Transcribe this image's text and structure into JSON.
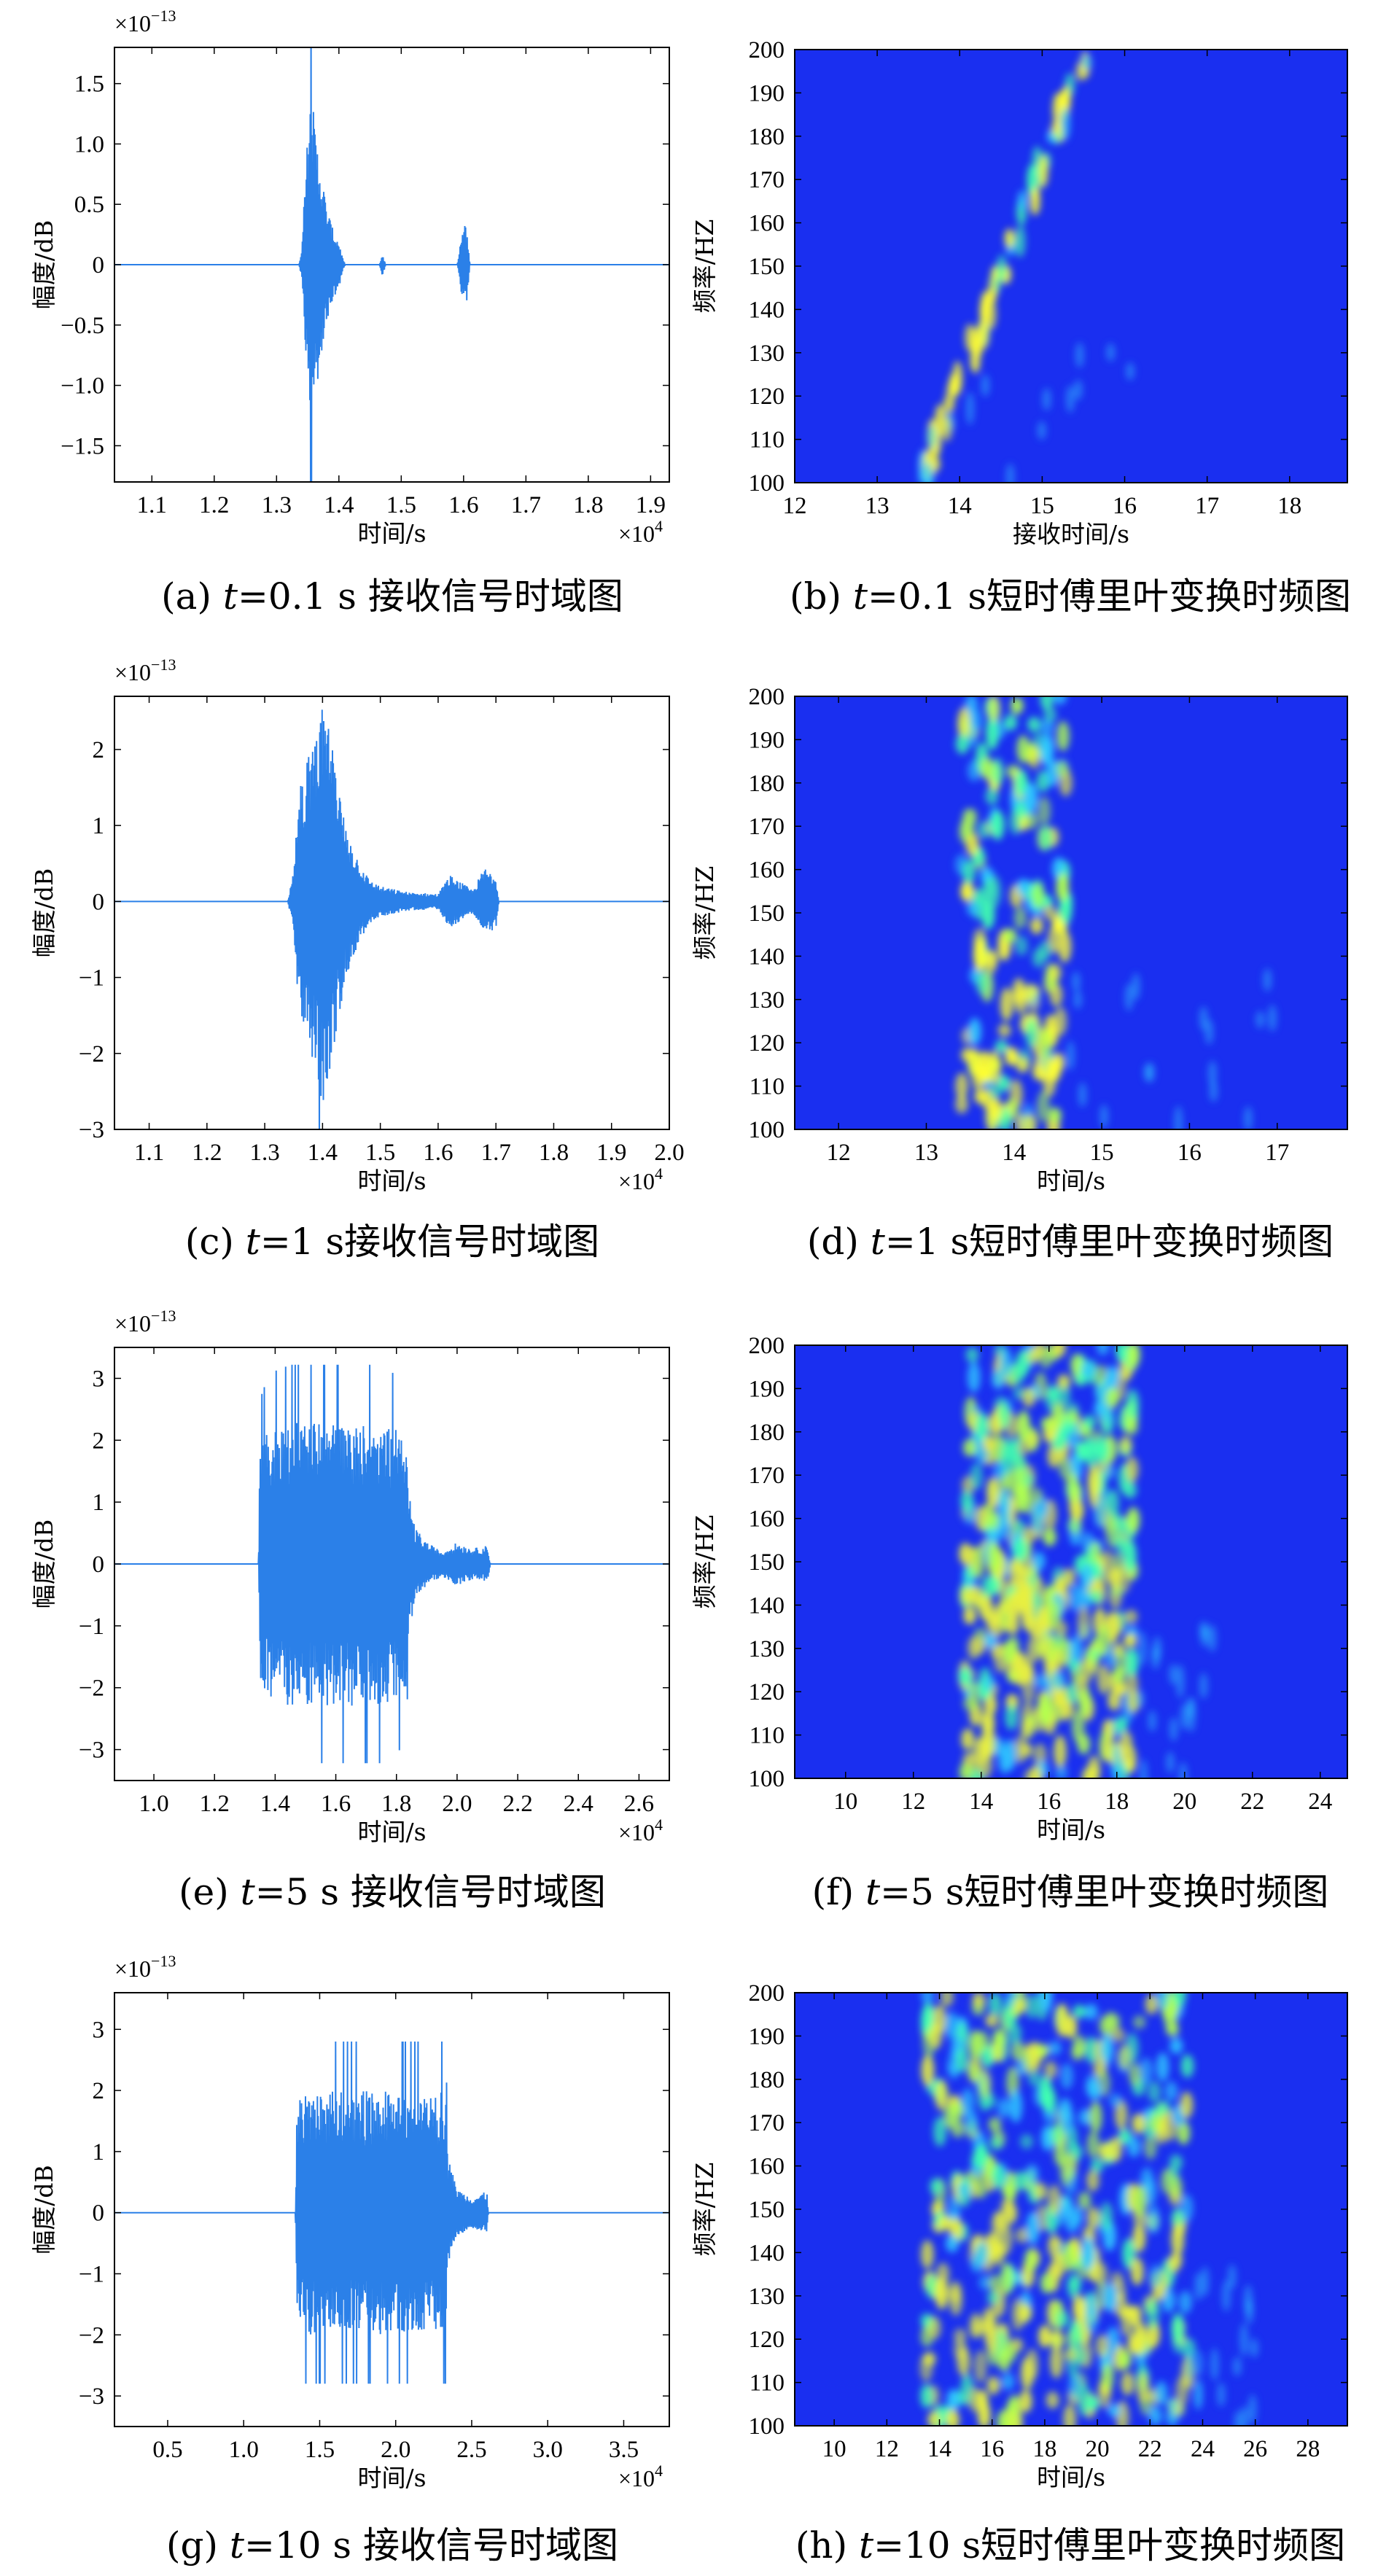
{
  "chart_data": [
    {
      "id": "a",
      "type": "line",
      "caption_prefix": "(a) ",
      "caption_var": "t",
      "caption_suffix": "=0.1 s 接收信号时域图",
      "xlabel": "时间/s",
      "ylabel": "幅度/dB",
      "x_multiplier_base": "×10",
      "x_multiplier_exp": "4",
      "y_multiplier_base": "×10",
      "y_multiplier_exp": "−13",
      "xlim": [
        1.04,
        1.93
      ],
      "ylim": [
        -1.8,
        1.8
      ],
      "xticks": [
        1.1,
        1.2,
        1.3,
        1.4,
        1.5,
        1.6,
        1.7,
        1.8,
        1.9
      ],
      "xtick_labels": [
        "1.1",
        "1.2",
        "1.3",
        "1.4",
        "1.5",
        "1.6",
        "1.7",
        "1.8",
        "1.9"
      ],
      "yticks": [
        -1.5,
        -1.0,
        -0.5,
        0,
        0.5,
        1.0,
        1.5
      ],
      "ytick_labels": [
        "−1.5",
        "−1.0",
        "−0.5",
        "0",
        "0.5",
        "1.0",
        "1.5"
      ],
      "line_color": "#2b80e8",
      "series": [
        {
          "envelope_x": [
            1.04,
            1.336,
            1.34,
            1.345,
            1.35,
            1.355,
            1.36,
            1.37,
            1.38,
            1.39,
            1.4,
            1.405,
            1.41,
            1.465,
            1.47,
            1.475,
            1.59,
            1.595,
            1.6,
            1.605,
            1.61,
            1.93
          ],
          "envelope_y": [
            0,
            0,
            0.1,
            0.6,
            1.1,
            1.65,
            1.2,
            0.85,
            0.5,
            0.3,
            0.2,
            0.08,
            0,
            0,
            0.1,
            0,
            0,
            0.22,
            0.35,
            0.32,
            0,
            0
          ]
        }
      ]
    },
    {
      "id": "b",
      "type": "heatmap",
      "caption_prefix": "(b) ",
      "caption_var": "t",
      "caption_suffix": "=0.1 s短时傅里叶变换时频图",
      "xlabel": "接收时间/s",
      "ylabel": "频率/HZ",
      "xlim": [
        12,
        18.7
      ],
      "ylim": [
        100,
        200
      ],
      "xticks": [
        12,
        13,
        14,
        15,
        16,
        17,
        18
      ],
      "xtick_labels": [
        "12",
        "13",
        "14",
        "15",
        "16",
        "17",
        "18"
      ],
      "yticks": [
        100,
        110,
        120,
        130,
        140,
        150,
        160,
        170,
        180,
        190,
        200
      ],
      "ytick_labels": [
        "100",
        "110",
        "120",
        "130",
        "140",
        "150",
        "160",
        "170",
        "180",
        "190",
        "200"
      ],
      "background_color": "#1a2ff0",
      "hot_colors": [
        "#ffff30",
        "#40ffb0",
        "#30c8ff"
      ],
      "energy_region": {
        "x_start": 13.45,
        "x_end": 13.75,
        "x_drift": 0.02,
        "decay_to_x": 16.1,
        "density": "sparse"
      }
    },
    {
      "id": "c",
      "type": "line",
      "caption_prefix": "(c) ",
      "caption_var": "t",
      "caption_suffix": "=1 s接收信号时域图",
      "xlabel": "时间/s",
      "ylabel": "幅度/dB",
      "x_multiplier_base": "×10",
      "x_multiplier_exp": "4",
      "y_multiplier_base": "×10",
      "y_multiplier_exp": "−13",
      "xlim": [
        1.04,
        2.0
      ],
      "ylim": [
        -3,
        2.7
      ],
      "xticks": [
        1.1,
        1.2,
        1.3,
        1.4,
        1.5,
        1.6,
        1.7,
        1.8,
        1.9,
        2.0
      ],
      "xtick_labels": [
        "1.1",
        "1.2",
        "1.3",
        "1.4",
        "1.5",
        "1.6",
        "1.7",
        "1.8",
        "1.9",
        "2.0"
      ],
      "yticks": [
        -3,
        -2,
        -1,
        0,
        1,
        2
      ],
      "ytick_labels": [
        "−3",
        "−2",
        "−1",
        "0",
        "1",
        "2"
      ],
      "line_color": "#2b80e8",
      "series": [
        {
          "envelope_x": [
            1.04,
            1.34,
            1.35,
            1.36,
            1.38,
            1.4,
            1.42,
            1.44,
            1.46,
            1.48,
            1.5,
            1.55,
            1.6,
            1.62,
            1.64,
            1.66,
            1.68,
            1.7,
            1.705,
            2.0
          ],
          "envelope_y": [
            0,
            0,
            0.4,
            1.6,
            2.0,
            2.7,
            1.9,
            1.0,
            0.6,
            0.3,
            0.2,
            0.12,
            0.1,
            0.35,
            0.25,
            0.15,
            0.45,
            0.35,
            0,
            0
          ]
        }
      ]
    },
    {
      "id": "d",
      "type": "heatmap",
      "caption_prefix": "(d) ",
      "caption_var": "t",
      "caption_suffix": "=1 s短时傅里叶变换时频图",
      "xlabel": "时间/s",
      "ylabel": "频率/HZ",
      "xlim": [
        11.5,
        17.8
      ],
      "ylim": [
        100,
        200
      ],
      "xticks": [
        12,
        13,
        14,
        15,
        16,
        17
      ],
      "xtick_labels": [
        "12",
        "13",
        "14",
        "15",
        "16",
        "17"
      ],
      "yticks": [
        100,
        110,
        120,
        130,
        140,
        150,
        160,
        170,
        180,
        190,
        200
      ],
      "ytick_labels": [
        "100",
        "110",
        "120",
        "130",
        "140",
        "150",
        "160",
        "170",
        "180",
        "190",
        "200"
      ],
      "background_color": "#1a2ff0",
      "hot_colors": [
        "#ffff30",
        "#b0ff50",
        "#40ffb0",
        "#30c8ff"
      ],
      "energy_region": {
        "x_start": 13.4,
        "x_end": 14.6,
        "x_drift": 0.0,
        "decay_to_x": 17.0,
        "density": "medium"
      }
    },
    {
      "id": "e",
      "type": "line",
      "caption_prefix": "(e) ",
      "caption_var": "t",
      "caption_suffix": "=5 s 接收信号时域图",
      "xlabel": "时间/s",
      "ylabel": "幅度/dB",
      "x_multiplier_base": "×10",
      "x_multiplier_exp": "4",
      "y_multiplier_base": "×10",
      "y_multiplier_exp": "−13",
      "xlim": [
        0.87,
        2.7
      ],
      "ylim": [
        -3.5,
        3.5
      ],
      "xticks": [
        1.0,
        1.2,
        1.4,
        1.6,
        1.8,
        2.0,
        2.2,
        2.4,
        2.6
      ],
      "xtick_labels": [
        "1.0",
        "1.2",
        "1.4",
        "1.6",
        "1.8",
        "2.0",
        "2.2",
        "2.4",
        "2.6"
      ],
      "yticks": [
        -3,
        -2,
        -1,
        0,
        1,
        2,
        3
      ],
      "ytick_labels": [
        "−3",
        "−2",
        "−1",
        "0",
        "1",
        "2",
        "3"
      ],
      "line_color": "#2b80e8",
      "series": [
        {
          "envelope_x": [
            0.87,
            1.345,
            1.35,
            1.38,
            1.45,
            1.55,
            1.65,
            1.75,
            1.83,
            1.84,
            1.86,
            1.9,
            1.95,
            2.0,
            2.05,
            2.1,
            2.11,
            2.7
          ],
          "envelope_y": [
            0,
            0,
            1.9,
            2.2,
            2.3,
            2.3,
            2.3,
            2.3,
            2.1,
            1.2,
            0.6,
            0.35,
            0.2,
            0.35,
            0.25,
            0.3,
            0,
            0
          ]
        }
      ]
    },
    {
      "id": "f",
      "type": "heatmap",
      "caption_prefix": "(f) ",
      "caption_var": "t",
      "caption_suffix": "=5 s短时傅里叶变换时频图",
      "xlabel": "时间/s",
      "ylabel": "频率/HZ",
      "xlim": [
        8.5,
        24.8
      ],
      "ylim": [
        100,
        200
      ],
      "xticks": [
        10,
        12,
        14,
        16,
        18,
        20,
        22,
        24
      ],
      "xtick_labels": [
        "10",
        "12",
        "14",
        "16",
        "18",
        "20",
        "22",
        "24"
      ],
      "yticks": [
        100,
        110,
        120,
        130,
        140,
        150,
        160,
        170,
        180,
        190,
        200
      ],
      "ytick_labels": [
        "100",
        "110",
        "120",
        "130",
        "140",
        "150",
        "160",
        "170",
        "180",
        "190",
        "200"
      ],
      "background_color": "#1a2ff0",
      "hot_colors": [
        "#e8f040",
        "#b0ff50",
        "#40ffb0",
        "#30c8ff"
      ],
      "energy_region": {
        "x_start": 13.5,
        "x_end": 18.5,
        "x_drift": 0.0,
        "decay_to_x": 21.0,
        "density": "dense"
      }
    },
    {
      "id": "g",
      "type": "line",
      "caption_prefix": "(g) ",
      "caption_var": "t",
      "caption_suffix": "=10 s 接收信号时域图",
      "xlabel": "时间/s",
      "ylabel": "幅度/dB",
      "x_multiplier_base": "×10",
      "x_multiplier_exp": "4",
      "y_multiplier_base": "×10",
      "y_multiplier_exp": "−13",
      "xlim": [
        0.15,
        3.8
      ],
      "ylim": [
        -3.5,
        3.6
      ],
      "xticks": [
        0.5,
        1.0,
        1.5,
        2.0,
        2.5,
        3.0,
        3.5
      ],
      "xtick_labels": [
        "0.5",
        "1.0",
        "1.5",
        "2.0",
        "2.5",
        "3.0",
        "3.5"
      ],
      "yticks": [
        -3,
        -2,
        -1,
        0,
        1,
        2,
        3
      ],
      "ytick_labels": [
        "−3",
        "−2",
        "−1",
        "0",
        "1",
        "2",
        "3"
      ],
      "line_color": "#2b80e8",
      "series": [
        {
          "envelope_x": [
            0.15,
            1.34,
            1.35,
            1.4,
            1.6,
            1.8,
            2.0,
            2.2,
            2.33,
            2.34,
            2.4,
            2.5,
            2.6,
            2.61,
            3.8
          ],
          "envelope_y": [
            0,
            0,
            1.8,
            2.0,
            2.0,
            2.0,
            2.0,
            2.0,
            2.0,
            1.0,
            0.4,
            0.25,
            0.35,
            0,
            0
          ]
        }
      ]
    },
    {
      "id": "h",
      "type": "heatmap",
      "caption_prefix": "(h) ",
      "caption_var": "t",
      "caption_suffix": "=10 s短时傅里叶变换时频图",
      "xlabel": "时间/s",
      "ylabel": "频率/HZ",
      "xlim": [
        8.5,
        29.5
      ],
      "ylim": [
        100,
        200
      ],
      "xticks": [
        10,
        12,
        14,
        16,
        18,
        20,
        22,
        24,
        26,
        28
      ],
      "xtick_labels": [
        "10",
        "12",
        "14",
        "16",
        "18",
        "20",
        "22",
        "24",
        "26",
        "28"
      ],
      "yticks": [
        100,
        110,
        120,
        130,
        140,
        150,
        160,
        170,
        180,
        190,
        200
      ],
      "ytick_labels": [
        "100",
        "110",
        "120",
        "130",
        "140",
        "150",
        "160",
        "170",
        "180",
        "190",
        "200"
      ],
      "background_color": "#1a2ff0",
      "hot_colors": [
        "#e8f040",
        "#b0ff50",
        "#40ffb0",
        "#30c8ff"
      ],
      "energy_region": {
        "x_start": 13.5,
        "x_end": 23.5,
        "x_drift": 0.0,
        "decay_to_x": 26.0,
        "density": "dense"
      }
    }
  ]
}
